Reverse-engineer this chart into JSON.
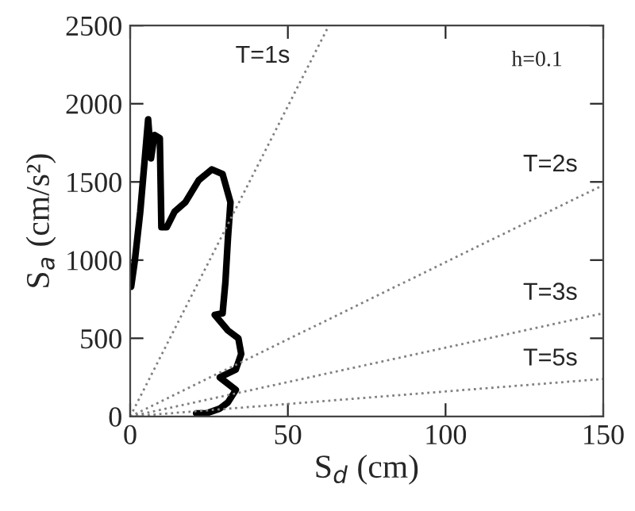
{
  "chart_data": {
    "type": "line",
    "xlabel": "S$_{d}$ (cm)",
    "ylabel": "S$_{a}$ (cm/s²)",
    "xlim": [
      0,
      150
    ],
    "ylim": [
      0,
      2500
    ],
    "xticks": [
      0,
      50,
      100,
      150
    ],
    "yticks": [
      0,
      500,
      1000,
      1500,
      2000,
      2500
    ],
    "grid": false,
    "legend": false,
    "series": [
      {
        "color": "#000000",
        "line_style": "solid",
        "x": [
          0.3,
          1.5,
          3.2,
          5.7,
          6.6,
          7.7,
          9.4,
          9.9,
          11.6,
          14.1,
          17.5,
          21.7,
          25.9,
          29.3,
          31.8,
          31,
          30.2,
          29.3,
          26.8,
          31,
          34.3,
          35.2,
          33.5,
          28.4,
          33.5,
          31,
          28.4,
          24.2,
          20.9
        ],
        "values": [
          830,
          1000,
          1310,
          1900,
          1650,
          1800,
          1780,
          1210,
          1210,
          1310,
          1370,
          1510,
          1580,
          1550,
          1370,
          1140,
          860,
          660,
          650,
          550,
          500,
          400,
          300,
          250,
          170,
          90,
          50,
          20,
          20
        ]
      },
      {
        "name": "T=1s",
        "color": "#808080",
        "line_style": "dotted",
        "x": [
          0,
          63
        ],
        "values": [
          0,
          2500
        ]
      },
      {
        "name": "T=2s",
        "color": "#808080",
        "line_style": "dotted",
        "x": [
          0,
          150
        ],
        "values": [
          0,
          1480
        ]
      },
      {
        "name": "T=3s",
        "color": "#808080",
        "line_style": "dotted",
        "x": [
          0,
          150
        ],
        "values": [
          0,
          660
        ]
      },
      {
        "name": "T=5s",
        "color": "#808080",
        "line_style": "dotted",
        "x": [
          0,
          150
        ],
        "values": [
          0,
          240
        ]
      }
    ],
    "annotations": [
      "h=0.1"
    ]
  }
}
